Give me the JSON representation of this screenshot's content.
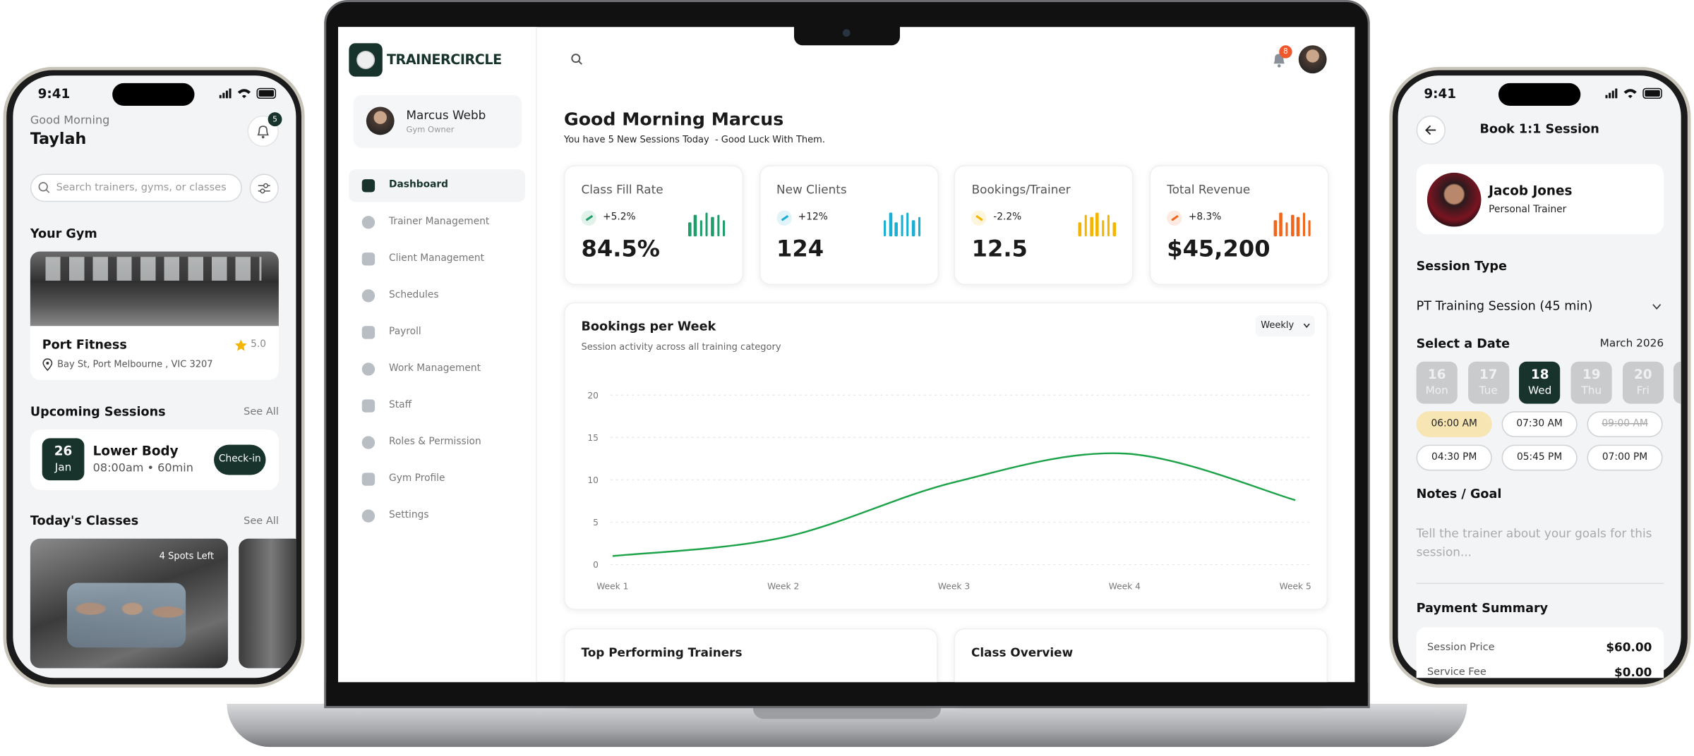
{
  "left_phone": {
    "time": "9:41",
    "greeting": "Good Morning",
    "name": "Taylah",
    "notification_count": 5,
    "search_placeholder": "Search trainers, gyms, or classes",
    "gym_heading": "Your Gym",
    "gym_name": "Port Fitness",
    "gym_rating": "5.0",
    "gym_address": "Bay St, Port Melbourne , VIC 3207",
    "sessions_heading": "Upcoming Sessions",
    "sessions_see_all": "See All",
    "session_day": 26,
    "session_month": "Jan",
    "session_title": "Lower Body",
    "session_detail": "08:00am • 60min",
    "session_action": "Check-in",
    "classes_heading": "Today's Classes",
    "classes_see_all": "See All",
    "class_spots": "4 Spots Left"
  },
  "dashboard": {
    "brand": "TRAINERCIRCLE",
    "notification_count": 8,
    "user_name": "Marcus Webb",
    "user_role": "Gym Owner",
    "nav": [
      {
        "label": "Dashboard",
        "active": true
      },
      {
        "label": "Trainer Management"
      },
      {
        "label": "Client Management"
      },
      {
        "label": "Schedules"
      },
      {
        "label": "Payroll"
      },
      {
        "label": "Work Management"
      },
      {
        "label": "Staff"
      },
      {
        "label": "Roles & Permission"
      },
      {
        "label": "Gym Profile"
      },
      {
        "label": "Settings"
      }
    ],
    "greeting": "Good Morning Marcus",
    "subtitle": "You have 5 New Sessions Today  - Good Luck With Them.",
    "stats": [
      {
        "label": "Class Fill Rate",
        "change": "+5.2%",
        "value": "84.5%",
        "color": "#1f9d6b",
        "bars": [
          6,
          9,
          7,
          10,
          8,
          9,
          7
        ]
      },
      {
        "label": "New Clients",
        "change": "+12%",
        "value": "124",
        "color": "#1aaed3",
        "bars": [
          7,
          10,
          6,
          9,
          10,
          7,
          8
        ]
      },
      {
        "label": "Bookings/Trainer",
        "change": "-2.2%",
        "value": "12.5",
        "color": "#f4b400",
        "bars": [
          6,
          9,
          8,
          10,
          7,
          9,
          6
        ]
      },
      {
        "label": "Total Revenue",
        "change": "+8.3%",
        "value": "$45,200",
        "color": "#f0661c",
        "bars": [
          7,
          10,
          6,
          9,
          8,
          10,
          7
        ]
      }
    ],
    "sections": [
      "Top Performing Trainers",
      "Class Overview"
    ]
  },
  "chart_data": {
    "type": "line",
    "title": "Bookings per Week",
    "subtitle": "Session activity across all training category",
    "period": "Weekly",
    "categories": [
      "Week 1",
      "Week 2",
      "Week 3",
      "Week 4",
      "Week 5"
    ],
    "values": [
      1,
      3.2,
      9.7,
      13.1,
      7.6
    ],
    "color": "#1ea34a",
    "ylim": [
      0,
      20
    ],
    "yticks": [
      0,
      5,
      10,
      15,
      20
    ],
    "grid": true
  },
  "right_phone": {
    "time": "9:41",
    "title": "Book 1:1 Session",
    "trainer_name": "Jacob Jones",
    "trainer_role": "Personal Trainer",
    "session_type_heading": "Session Type",
    "session_type": "PT Training Session (45 min)",
    "date_heading": "Select a Date",
    "month": "March 2026",
    "dates": [
      {
        "day": 16,
        "weekday": "Mon"
      },
      {
        "day": 17,
        "weekday": "Tue"
      },
      {
        "day": 18,
        "weekday": "Wed",
        "selected": true
      },
      {
        "day": 19,
        "weekday": "Thu"
      },
      {
        "day": 20,
        "weekday": "Fri"
      }
    ],
    "times": [
      {
        "label": "06:00 AM",
        "state": "selected"
      },
      {
        "label": "07:30 AM"
      },
      {
        "label": "09:00 AM",
        "state": "unavailable"
      },
      {
        "label": "04:30 PM"
      },
      {
        "label": "05:45 PM"
      },
      {
        "label": "07:00 PM"
      }
    ],
    "notes_heading": "Notes / Goal",
    "notes_placeholder": "Tell the trainer about your goals for this session...",
    "payment_heading": "Payment Summary",
    "payment": [
      {
        "label": "Session Price",
        "amount": "$60.00"
      },
      {
        "label": "Service Fee",
        "amount": "$0.00"
      }
    ]
  }
}
